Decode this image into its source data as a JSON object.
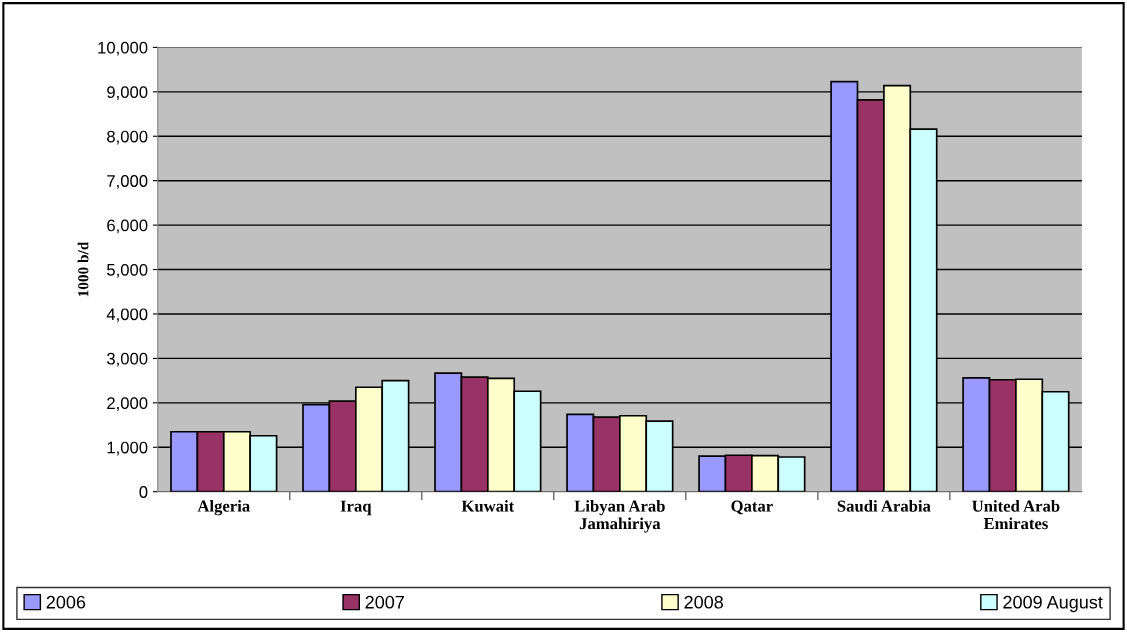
{
  "chart_data": {
    "type": "bar",
    "ylabel": "1000 b/d",
    "categories": [
      "Algeria",
      "Iraq",
      "Kuwait",
      "Libyan Arab\nJamahiriya",
      "Qatar",
      "Saudi Arabia",
      "United Arab\nEmirates"
    ],
    "series": [
      {
        "name": "2006",
        "color": "#9999ff",
        "values": [
          1350,
          1960,
          2670,
          1740,
          800,
          9230,
          2560
        ]
      },
      {
        "name": "2007",
        "color": "#993366",
        "values": [
          1350,
          2040,
          2580,
          1680,
          820,
          8820,
          2520
        ]
      },
      {
        "name": "2008",
        "color": "#ffffcc",
        "values": [
          1350,
          2350,
          2550,
          1710,
          810,
          9140,
          2530
        ]
      },
      {
        "name": "2009 August",
        "color": "#ccffff",
        "values": [
          1260,
          2500,
          2260,
          1590,
          780,
          8160,
          2250
        ]
      }
    ],
    "ylim": [
      0,
      10000
    ],
    "yticks": [
      {
        "value": 0,
        "label": "0"
      },
      {
        "value": 1000,
        "label": "1,000"
      },
      {
        "value": 2000,
        "label": "2,000"
      },
      {
        "value": 3000,
        "label": "3,000"
      },
      {
        "value": 4000,
        "label": "4,000"
      },
      {
        "value": 5000,
        "label": "5,000"
      },
      {
        "value": 6000,
        "label": "6,000"
      },
      {
        "value": 7000,
        "label": "7,000"
      },
      {
        "value": 8000,
        "label": "8,000"
      },
      {
        "value": 9000,
        "label": "9,000"
      },
      {
        "value": 10000,
        "label": "10,000"
      }
    ],
    "grid": "y",
    "legend": "bottom"
  }
}
